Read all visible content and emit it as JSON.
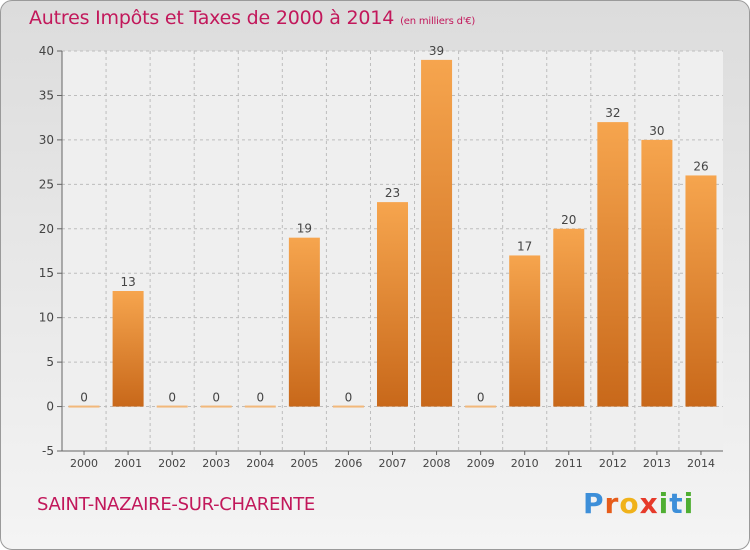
{
  "chart_data": {
    "type": "bar",
    "title": "Autres Impôts et Taxes de 2000 à 2014",
    "subtitle": "(en milliers d'€)",
    "categories": [
      "2000",
      "2001",
      "2002",
      "2003",
      "2004",
      "2005",
      "2006",
      "2007",
      "2008",
      "2009",
      "2010",
      "2011",
      "2012",
      "2013",
      "2014"
    ],
    "values": [
      0,
      13,
      0,
      0,
      0,
      19,
      0,
      23,
      39,
      0,
      17,
      20,
      32,
      30,
      26
    ],
    "ylim": [
      -5,
      40
    ],
    "yticks": [
      -5,
      0,
      5,
      10,
      15,
      20,
      25,
      30,
      35,
      40
    ],
    "xlabel": "",
    "ylabel": "",
    "grid": "horizontal dashed",
    "bar_color_top": "#f6a54e",
    "bar_color_bottom": "#c8681a"
  },
  "footer": {
    "city": "SAINT-NAZAIRE-SUR-CHARENTE",
    "logo_letters": [
      "P",
      "r",
      "o",
      "x",
      "i",
      "t",
      "i"
    ],
    "logo_colors": [
      "#3d8fd9",
      "#e65c1a",
      "#f0b21a",
      "#e63a2a",
      "#4fae32",
      "#3d8fd9",
      "#4fae32"
    ]
  },
  "colors": {
    "title": "#c2185b",
    "axis_text": "#444444",
    "grid": "#bdbdbd"
  }
}
